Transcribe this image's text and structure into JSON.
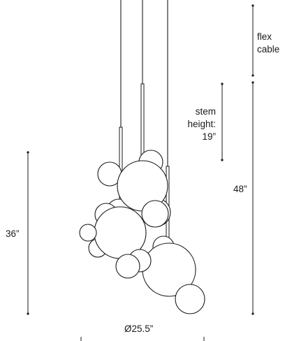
{
  "dimensions": {
    "flex_cable": "flex\ncable",
    "flex_cable_line1": "flex",
    "flex_cable_line2": "cable",
    "stem_height_line1": "stem",
    "stem_height_line2": "height:",
    "stem_height_line3": "19”",
    "total_height": "48”",
    "fixture_height": "36”",
    "diameter": "Ø25.5”"
  },
  "colors": {
    "line": "#1a1a1a",
    "background": "#ffffff"
  }
}
